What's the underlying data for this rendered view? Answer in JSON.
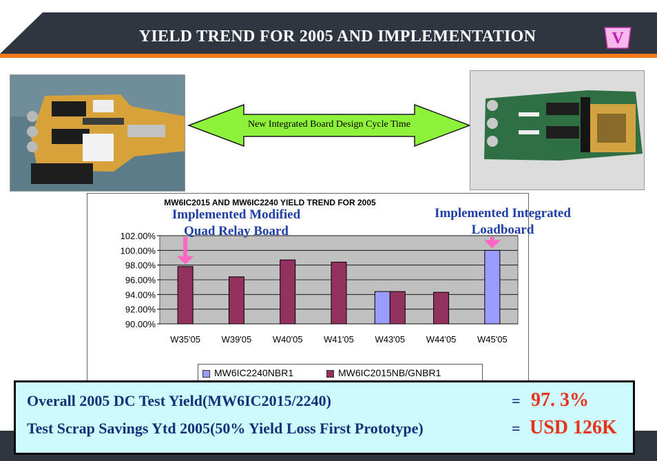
{
  "header": {
    "title": "YIELD TREND FOR 2005 AND IMPLEMENTATION",
    "logo_letter": "V",
    "band_color": "#2f3640",
    "accent_color": "#f07a1c"
  },
  "photos": {
    "left_icon": "quad-relay-board-photo",
    "right_icon": "integrated-loadboard-photo"
  },
  "arrow": {
    "label": "New Integrated Board Design Cycle Time",
    "color": "#8ef23a"
  },
  "annotations": {
    "left": [
      "Implemented Modified",
      "Quad Relay Board"
    ],
    "right": [
      "Implemented Integrated",
      "Loadboard"
    ],
    "marker_color": "#ff66c4"
  },
  "chart_data": {
    "type": "bar",
    "title": "MW6IC2015 AND MW6IC2240 YIELD TREND FOR 2005",
    "categories": [
      "W35'05",
      "W39'05",
      "W40'05",
      "W41'05",
      "W43'05",
      "W44'05",
      "W45'05"
    ],
    "series": [
      {
        "name": "MW6IC2240NBR1",
        "color": "#9a9cff",
        "values": [
          null,
          null,
          null,
          null,
          94.4,
          null,
          100.0
        ]
      },
      {
        "name": "MW6IC2015NB/GNBR1",
        "color": "#93325e",
        "values": [
          97.8,
          96.4,
          98.7,
          98.4,
          94.4,
          94.3,
          null
        ]
      }
    ],
    "yticks": [
      "102.00%",
      "100.00%",
      "98.00%",
      "96.00%",
      "94.00%",
      "92.00%",
      "90.00%"
    ],
    "ylim": [
      90,
      102
    ],
    "grid": true,
    "plot_bg": "#c0c0c0",
    "legend_position": "bottom"
  },
  "summary": {
    "line1_label": "Overall 2005 DC Test Yield(MW6IC2015/2240)",
    "line1_eq": "=",
    "line1_value": "97. 3%",
    "line2_label": "Test Scrap Savings Ytd 2005(50% Yield Loss First Prototype)",
    "line2_eq": "=",
    "line2_value": "USD 126K"
  }
}
